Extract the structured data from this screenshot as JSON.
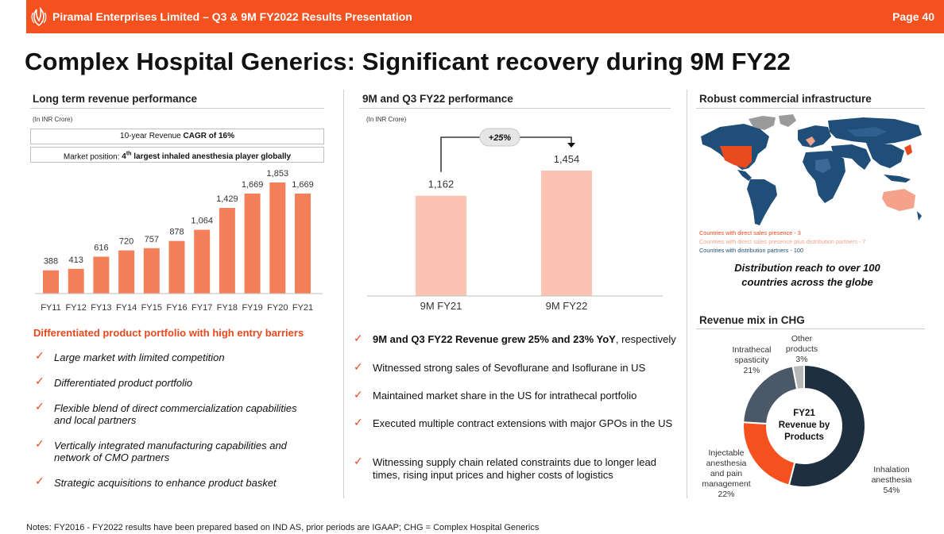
{
  "header": {
    "title": "Piramal Enterprises Limited – Q3 & 9M FY2022 Results Presentation",
    "page": "Page 40"
  },
  "slide_title": "Complex Hospital Generics: Significant recovery during 9M FY22",
  "left": {
    "heading": "Long term revenue performance",
    "units": "(In INR Crore)",
    "cagr_prefix": "10-year Revenue ",
    "cagr_bold": "CAGR of 16%",
    "market_prefix": "Market position: ",
    "market_rank": "4",
    "market_sup": "th",
    "market_suffix": " largest inhaled anesthesia player globally",
    "subheading": "Differentiated product portfolio with high entry barriers",
    "bullets": [
      "Large market with limited competition",
      "Differentiated product portfolio",
      "Flexible blend of direct commercialization capabilities and local partners",
      "Vertically integrated manufacturing capabilities and network of CMO partners",
      "Strategic acquisitions to enhance product basket"
    ]
  },
  "middle": {
    "heading": "9M and Q3 FY22 performance",
    "units": "(In INR Crore)",
    "growth_label": "+25%",
    "bullets": [
      {
        "bold": "9M and Q3 FY22 Revenue grew 25% and 23% YoY",
        "rest": ", respectively"
      },
      {
        "bold": "",
        "rest": "Witnessed strong sales of Sevoflurane and Isoflurane in US"
      },
      {
        "bold": "",
        "rest": "Maintained market share in the US for intrathecal portfolio"
      },
      {
        "bold": "",
        "rest": "Executed multiple contract extensions with major GPOs in the US"
      },
      {
        "bold": "",
        "rest": "Witnessing supply chain related constraints due to longer lead times, rising input prices and higher costs of logistics"
      }
    ]
  },
  "right": {
    "heading": "Robust commercial infrastructure",
    "legend": [
      {
        "label": "Countries with direct sales presence - 3",
        "color": "#e8491d"
      },
      {
        "label": "Countries with direct sales presence plus distribution partners - 7",
        "color": "#f4a28a"
      },
      {
        "label": "Countries with distribution partners - 100",
        "color": "#1f4e79"
      }
    ],
    "reach_line1": "Distribution reach to over 100",
    "reach_line2": "countries across the globe",
    "mix_heading": "Revenue mix in CHG",
    "donut_center": [
      "FY21",
      "Revenue by",
      "Products"
    ]
  },
  "chart_data": [
    {
      "type": "bar",
      "title": "Long term revenue performance",
      "ylabel": "INR Crore",
      "categories": [
        "FY11",
        "FY12",
        "FY13",
        "FY14",
        "FY15",
        "FY16",
        "FY17",
        "FY18",
        "FY19",
        "FY20",
        "FY21"
      ],
      "values": [
        388,
        413,
        616,
        720,
        757,
        878,
        1064,
        1429,
        1669,
        1853,
        1669
      ],
      "labels": [
        "388",
        "413",
        "616",
        "720",
        "757",
        "878",
        "1,064",
        "1,429",
        "1,669",
        "1,853",
        "1,669"
      ],
      "ylim": [
        0,
        1853
      ],
      "color": "#f4805a"
    },
    {
      "type": "bar",
      "title": "9M and Q3 FY22 performance",
      "ylabel": "INR Crore",
      "categories": [
        "9M FY21",
        "9M FY22"
      ],
      "values": [
        1162,
        1454
      ],
      "labels": [
        "1,162",
        "1,454"
      ],
      "ylim": [
        0,
        1454
      ],
      "color": "#fbc4b2"
    },
    {
      "type": "pie",
      "title": "FY21 Revenue by Products",
      "slices": [
        {
          "name": "Inhalation anesthesia",
          "value": 54,
          "label_lines": [
            "Inhalation",
            "anesthesia",
            "54%"
          ],
          "color": "#1e2f3f"
        },
        {
          "name": "Injectable anesthesia and pain management",
          "value": 22,
          "label_lines": [
            "Injectable",
            "anesthesia",
            "and pain",
            "management",
            "22%"
          ],
          "color": "#f4511e"
        },
        {
          "name": "Intrathecal spasticity",
          "value": 21,
          "label_lines": [
            "Intrathecal",
            "spasticity",
            "21%"
          ],
          "color": "#4a5867"
        },
        {
          "name": "Other products",
          "value": 3,
          "label_lines": [
            "Other",
            "products",
            "3%"
          ],
          "color": "#b8b8b8"
        }
      ]
    }
  ],
  "footer": {
    "notes": "Notes:  FY2016 - FY2022 results have been prepared based on IND AS, prior periods are IGAAP; CHG = Complex Hospital Generics"
  },
  "colors": {
    "brand": "#f4511e",
    "accent_text": "#e8491d",
    "navy": "#1f4e79"
  }
}
